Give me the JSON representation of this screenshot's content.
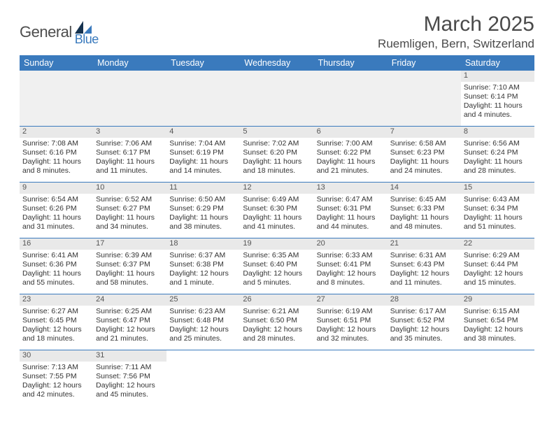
{
  "brand": {
    "part1": "General",
    "part2": "Blue",
    "color1": "#4d4d4d",
    "color2": "#3a7abd"
  },
  "title": "March 2025",
  "location": "Ruemligen, Bern, Switzerland",
  "colors": {
    "header_bg": "#3a7abd",
    "header_fg": "#ffffff",
    "daynum_bg": "#e9e9e9",
    "border": "#3a7abd",
    "empty_bg": "#f0f0f0"
  },
  "day_names": [
    "Sunday",
    "Monday",
    "Tuesday",
    "Wednesday",
    "Thursday",
    "Friday",
    "Saturday"
  ],
  "weeks": [
    [
      null,
      null,
      null,
      null,
      null,
      null,
      {
        "n": "1",
        "sunrise": "7:10 AM",
        "sunset": "6:14 PM",
        "d1": "Daylight: 11 hours",
        "d2": "and 4 minutes."
      }
    ],
    [
      {
        "n": "2",
        "sunrise": "7:08 AM",
        "sunset": "6:16 PM",
        "d1": "Daylight: 11 hours",
        "d2": "and 8 minutes."
      },
      {
        "n": "3",
        "sunrise": "7:06 AM",
        "sunset": "6:17 PM",
        "d1": "Daylight: 11 hours",
        "d2": "and 11 minutes."
      },
      {
        "n": "4",
        "sunrise": "7:04 AM",
        "sunset": "6:19 PM",
        "d1": "Daylight: 11 hours",
        "d2": "and 14 minutes."
      },
      {
        "n": "5",
        "sunrise": "7:02 AM",
        "sunset": "6:20 PM",
        "d1": "Daylight: 11 hours",
        "d2": "and 18 minutes."
      },
      {
        "n": "6",
        "sunrise": "7:00 AM",
        "sunset": "6:22 PM",
        "d1": "Daylight: 11 hours",
        "d2": "and 21 minutes."
      },
      {
        "n": "7",
        "sunrise": "6:58 AM",
        "sunset": "6:23 PM",
        "d1": "Daylight: 11 hours",
        "d2": "and 24 minutes."
      },
      {
        "n": "8",
        "sunrise": "6:56 AM",
        "sunset": "6:24 PM",
        "d1": "Daylight: 11 hours",
        "d2": "and 28 minutes."
      }
    ],
    [
      {
        "n": "9",
        "sunrise": "6:54 AM",
        "sunset": "6:26 PM",
        "d1": "Daylight: 11 hours",
        "d2": "and 31 minutes."
      },
      {
        "n": "10",
        "sunrise": "6:52 AM",
        "sunset": "6:27 PM",
        "d1": "Daylight: 11 hours",
        "d2": "and 34 minutes."
      },
      {
        "n": "11",
        "sunrise": "6:50 AM",
        "sunset": "6:29 PM",
        "d1": "Daylight: 11 hours",
        "d2": "and 38 minutes."
      },
      {
        "n": "12",
        "sunrise": "6:49 AM",
        "sunset": "6:30 PM",
        "d1": "Daylight: 11 hours",
        "d2": "and 41 minutes."
      },
      {
        "n": "13",
        "sunrise": "6:47 AM",
        "sunset": "6:31 PM",
        "d1": "Daylight: 11 hours",
        "d2": "and 44 minutes."
      },
      {
        "n": "14",
        "sunrise": "6:45 AM",
        "sunset": "6:33 PM",
        "d1": "Daylight: 11 hours",
        "d2": "and 48 minutes."
      },
      {
        "n": "15",
        "sunrise": "6:43 AM",
        "sunset": "6:34 PM",
        "d1": "Daylight: 11 hours",
        "d2": "and 51 minutes."
      }
    ],
    [
      {
        "n": "16",
        "sunrise": "6:41 AM",
        "sunset": "6:36 PM",
        "d1": "Daylight: 11 hours",
        "d2": "and 55 minutes."
      },
      {
        "n": "17",
        "sunrise": "6:39 AM",
        "sunset": "6:37 PM",
        "d1": "Daylight: 11 hours",
        "d2": "and 58 minutes."
      },
      {
        "n": "18",
        "sunrise": "6:37 AM",
        "sunset": "6:38 PM",
        "d1": "Daylight: 12 hours",
        "d2": "and 1 minute."
      },
      {
        "n": "19",
        "sunrise": "6:35 AM",
        "sunset": "6:40 PM",
        "d1": "Daylight: 12 hours",
        "d2": "and 5 minutes."
      },
      {
        "n": "20",
        "sunrise": "6:33 AM",
        "sunset": "6:41 PM",
        "d1": "Daylight: 12 hours",
        "d2": "and 8 minutes."
      },
      {
        "n": "21",
        "sunrise": "6:31 AM",
        "sunset": "6:43 PM",
        "d1": "Daylight: 12 hours",
        "d2": "and 11 minutes."
      },
      {
        "n": "22",
        "sunrise": "6:29 AM",
        "sunset": "6:44 PM",
        "d1": "Daylight: 12 hours",
        "d2": "and 15 minutes."
      }
    ],
    [
      {
        "n": "23",
        "sunrise": "6:27 AM",
        "sunset": "6:45 PM",
        "d1": "Daylight: 12 hours",
        "d2": "and 18 minutes."
      },
      {
        "n": "24",
        "sunrise": "6:25 AM",
        "sunset": "6:47 PM",
        "d1": "Daylight: 12 hours",
        "d2": "and 21 minutes."
      },
      {
        "n": "25",
        "sunrise": "6:23 AM",
        "sunset": "6:48 PM",
        "d1": "Daylight: 12 hours",
        "d2": "and 25 minutes."
      },
      {
        "n": "26",
        "sunrise": "6:21 AM",
        "sunset": "6:50 PM",
        "d1": "Daylight: 12 hours",
        "d2": "and 28 minutes."
      },
      {
        "n": "27",
        "sunrise": "6:19 AM",
        "sunset": "6:51 PM",
        "d1": "Daylight: 12 hours",
        "d2": "and 32 minutes."
      },
      {
        "n": "28",
        "sunrise": "6:17 AM",
        "sunset": "6:52 PM",
        "d1": "Daylight: 12 hours",
        "d2": "and 35 minutes."
      },
      {
        "n": "29",
        "sunrise": "6:15 AM",
        "sunset": "6:54 PM",
        "d1": "Daylight: 12 hours",
        "d2": "and 38 minutes."
      }
    ],
    [
      {
        "n": "30",
        "sunrise": "7:13 AM",
        "sunset": "7:55 PM",
        "d1": "Daylight: 12 hours",
        "d2": "and 42 minutes."
      },
      {
        "n": "31",
        "sunrise": "7:11 AM",
        "sunset": "7:56 PM",
        "d1": "Daylight: 12 hours",
        "d2": "and 45 minutes."
      },
      null,
      null,
      null,
      null,
      null
    ]
  ]
}
